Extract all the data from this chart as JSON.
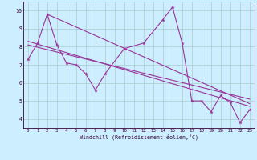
{
  "background_color": "#cceeff",
  "line_color": "#993399",
  "grid_color": "#aacccc",
  "xlabel": "Windchill (Refroidissement éolien,°C)",
  "xlim": [
    -0.5,
    23.5
  ],
  "ylim": [
    3.5,
    10.5
  ],
  "xticks": [
    0,
    1,
    2,
    3,
    4,
    5,
    6,
    7,
    8,
    9,
    10,
    11,
    12,
    13,
    14,
    15,
    16,
    17,
    18,
    19,
    20,
    21,
    22,
    23
  ],
  "yticks": [
    4,
    5,
    6,
    7,
    8,
    9,
    10
  ],
  "line1_x": [
    0,
    1,
    2,
    3,
    4,
    5,
    6,
    7,
    8,
    10,
    12,
    14,
    15,
    16,
    17,
    18,
    19,
    20,
    21,
    22,
    23
  ],
  "line1_y": [
    7.3,
    8.2,
    9.8,
    8.1,
    7.1,
    7.0,
    6.5,
    5.6,
    6.5,
    7.9,
    8.2,
    9.5,
    10.2,
    8.2,
    5.0,
    5.0,
    4.4,
    5.3,
    4.9,
    3.8,
    4.5
  ],
  "line2_x": [
    0,
    23
  ],
  "line2_y": [
    8.1,
    5.1
  ],
  "line3_x": [
    0,
    23
  ],
  "line3_y": [
    8.3,
    4.7
  ],
  "line4_x": [
    2,
    23
  ],
  "line4_y": [
    9.8,
    4.85
  ]
}
